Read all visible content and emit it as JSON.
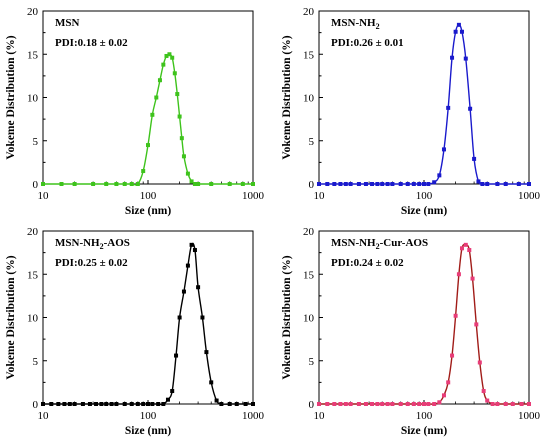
{
  "chart_data": [
    {
      "type": "line",
      "title": "MSN",
      "annotation": "PDI:0.18 ± 0.02",
      "xlabel": "Size (nm)",
      "ylabel": "Vokeme Distribution (%)",
      "xscale": "log",
      "xlim": [
        10,
        1000
      ],
      "ylim": [
        0,
        20
      ],
      "xticks": [
        "10",
        "100",
        "1000"
      ],
      "yticks": [
        "0",
        "5",
        "10",
        "15",
        "20"
      ],
      "color": "#3ec31c",
      "grid": false,
      "x": [
        10,
        15,
        20,
        30,
        40,
        50,
        60,
        70,
        80,
        90,
        100,
        110,
        120,
        130,
        140,
        150,
        160,
        170,
        180,
        190,
        200,
        210,
        220,
        240,
        260,
        280,
        300,
        400,
        600,
        800,
        1000
      ],
      "values": [
        0,
        0,
        0,
        0,
        0,
        0,
        0,
        0,
        0,
        1.5,
        4.5,
        8.0,
        10.0,
        12.0,
        13.8,
        14.8,
        15.0,
        14.6,
        12.8,
        10.4,
        7.8,
        5.3,
        3.2,
        1.2,
        0.3,
        0,
        0,
        0,
        0,
        0,
        0
      ]
    },
    {
      "type": "line",
      "title": "MSN-NH",
      "title_sub": "2",
      "annotation": "PDI:0.26 ± 0.01",
      "xlabel": "Size (nm)",
      "ylabel": "Vokeme Distribution (%)",
      "xscale": "log",
      "xlim": [
        10,
        1000
      ],
      "ylim": [
        0,
        20
      ],
      "xticks": [
        "10",
        "100",
        "1000"
      ],
      "yticks": [
        "0",
        "5",
        "10",
        "15",
        "20"
      ],
      "color": "#1a1acc",
      "grid": false,
      "x": [
        10,
        12,
        14,
        16,
        18,
        20,
        24,
        28,
        32,
        36,
        40,
        45,
        50,
        60,
        70,
        80,
        90,
        100,
        110,
        125,
        140,
        155,
        170,
        185,
        200,
        215,
        230,
        250,
        275,
        300,
        330,
        360,
        400,
        500,
        600,
        800,
        1000
      ],
      "values": [
        0,
        0,
        0,
        0,
        0,
        0,
        0,
        0,
        0,
        0,
        0,
        0,
        0,
        0,
        0,
        0,
        0,
        0,
        0,
        0.2,
        1.0,
        4.0,
        8.8,
        14.6,
        17.6,
        18.4,
        17.6,
        14.5,
        8.7,
        2.9,
        0.3,
        0,
        0,
        0,
        0,
        0,
        0
      ]
    },
    {
      "type": "line",
      "title": "MSN-NH",
      "title_sub": "2",
      "title_suffix": "-AOS",
      "annotation": "PDI:0.25 ± 0.02",
      "xlabel": "Size (nm)",
      "ylabel": "Vokeme Distribution (%)",
      "xscale": "log",
      "xlim": [
        10,
        1000
      ],
      "ylim": [
        0,
        20
      ],
      "xticks": [
        "10",
        "100",
        "1000"
      ],
      "yticks": [
        "0",
        "5",
        "10",
        "15",
        "20"
      ],
      "color": "#000000",
      "grid": false,
      "x": [
        10,
        12,
        14,
        16,
        18,
        20,
        24,
        28,
        32,
        36,
        40,
        45,
        50,
        60,
        70,
        80,
        90,
        100,
        110,
        125,
        140,
        155,
        170,
        185,
        200,
        220,
        240,
        260,
        280,
        300,
        330,
        360,
        400,
        450,
        500,
        600,
        700,
        850,
        1000
      ],
      "values": [
        0,
        0,
        0,
        0,
        0,
        0,
        0,
        0,
        0,
        0,
        0,
        0,
        0,
        0,
        0,
        0,
        0,
        0,
        0,
        0,
        0,
        0.5,
        1.5,
        5.6,
        10.0,
        13.0,
        16.0,
        18.4,
        17.8,
        13.5,
        10.0,
        6.0,
        2.5,
        0.4,
        0,
        0,
        0,
        0,
        0
      ]
    },
    {
      "type": "line",
      "title": "MSN-NH",
      "title_sub": "2",
      "title_suffix": "-Cur-AOS",
      "annotation": "PDI:0.24 ± 0.02",
      "xlabel": "Size (nm)",
      "ylabel": "Vokeme Distribution (%)",
      "xscale": "log",
      "xlim": [
        10,
        1000
      ],
      "ylim": [
        0,
        20
      ],
      "xticks": [
        "10",
        "100",
        "1000"
      ],
      "yticks": [
        "0",
        "5",
        "10",
        "15",
        "20"
      ],
      "color": "#a11c18",
      "marker_color": "#e83c78",
      "grid": false,
      "x": [
        10,
        12,
        14,
        16,
        18,
        20,
        24,
        28,
        32,
        36,
        40,
        45,
        50,
        60,
        70,
        80,
        90,
        100,
        110,
        125,
        140,
        155,
        170,
        185,
        200,
        215,
        230,
        250,
        270,
        290,
        315,
        340,
        370,
        400,
        450,
        500,
        600,
        700,
        850,
        1000
      ],
      "values": [
        0,
        0,
        0,
        0,
        0,
        0,
        0,
        0,
        0,
        0,
        0,
        0,
        0,
        0,
        0,
        0,
        0,
        0,
        0,
        0,
        0.2,
        1.0,
        2.5,
        5.6,
        10.2,
        15.0,
        18.0,
        18.4,
        17.8,
        14.5,
        9.2,
        4.8,
        1.5,
        0.4,
        0,
        0,
        0,
        0,
        0,
        0
      ]
    }
  ]
}
